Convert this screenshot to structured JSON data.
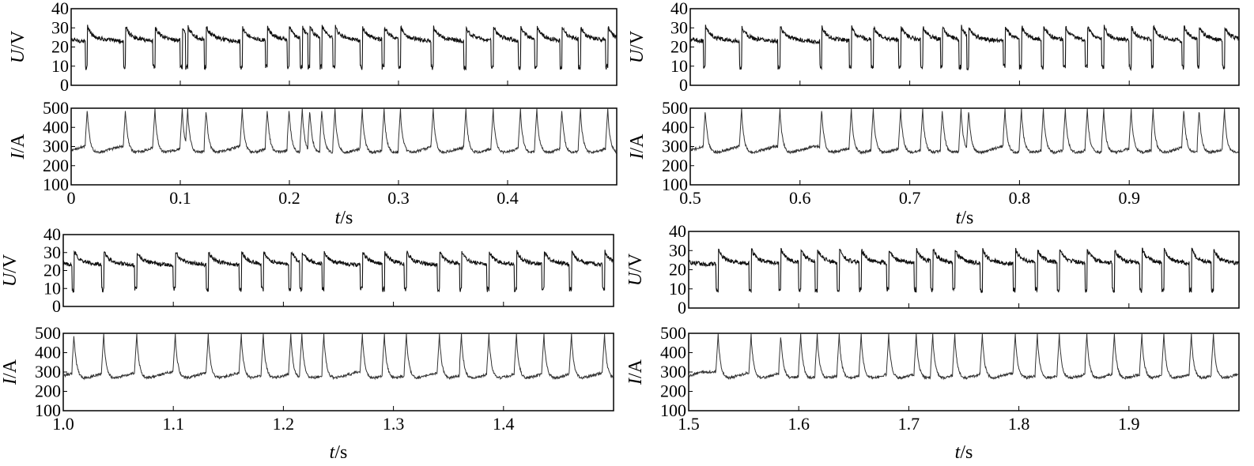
{
  "chart_data": [
    {
      "type": "line",
      "time_range": [
        0,
        0.5
      ],
      "xticks": [
        0,
        0.1,
        0.2,
        0.3,
        0.4
      ],
      "xtick_labels": [
        "0",
        "0.1",
        "0.2",
        "0.3",
        "0.4"
      ],
      "xlabel_var": "t",
      "xlabel_unit": "/s",
      "voltage": {
        "ylabel_var": "U",
        "ylabel_unit": "/V",
        "ylim": [
          0,
          40
        ],
        "yticks": [
          "40",
          "30",
          "20",
          "10",
          "0"
        ],
        "series": [
          {
            "baseline": 25,
            "drop_to": 8,
            "short_circuit_times": [
              0.013,
              0.048,
              0.075,
              0.1,
              0.105,
              0.122,
              0.155,
              0.178,
              0.198,
              0.21,
              0.217,
              0.228,
              0.24,
              0.265,
              0.285,
              0.3,
              0.33,
              0.36,
              0.385,
              0.41,
              0.425,
              0.448,
              0.465,
              0.49
            ]
          }
        ]
      },
      "current": {
        "ylabel_var": "I",
        "ylabel_unit": "/A",
        "ylim": [
          100,
          500
        ],
        "yticks": [
          "500",
          "400",
          "300",
          "200",
          "100"
        ],
        "series": [
          {
            "baseline": 280,
            "peak_to": 500,
            "short_circuit_times": [
              0.013,
              0.048,
              0.075,
              0.1,
              0.105,
              0.122,
              0.155,
              0.178,
              0.198,
              0.21,
              0.217,
              0.228,
              0.24,
              0.265,
              0.285,
              0.3,
              0.33,
              0.36,
              0.385,
              0.41,
              0.425,
              0.448,
              0.465,
              0.49
            ]
          }
        ]
      }
    },
    {
      "type": "line",
      "time_range": [
        0.5,
        1.0
      ],
      "xticks": [
        0.5,
        0.6,
        0.7,
        0.8,
        0.9
      ],
      "xtick_labels": [
        "0.5",
        "0.6",
        "0.7",
        "0.8",
        "0.9"
      ],
      "xlabel_var": "t",
      "xlabel_unit": "/s",
      "voltage": {
        "ylabel_var": "U",
        "ylabel_unit": "/V",
        "ylim": [
          0,
          40
        ],
        "yticks": [
          "40",
          "30",
          "20",
          "10",
          "0"
        ],
        "series": [
          {
            "baseline": 25,
            "drop_to": 8,
            "short_circuit_times": [
              0.512,
              0.545,
              0.58,
              0.618,
              0.645,
              0.665,
              0.69,
              0.71,
              0.728,
              0.745,
              0.752,
              0.785,
              0.8,
              0.82,
              0.84,
              0.86,
              0.875,
              0.9,
              0.92,
              0.948,
              0.962,
              0.985
            ]
          }
        ]
      },
      "current": {
        "ylabel_var": "I",
        "ylabel_unit": "/A",
        "ylim": [
          100,
          500
        ],
        "yticks": [
          "500",
          "400",
          "300",
          "200",
          "100"
        ],
        "series": [
          {
            "baseline": 280,
            "peak_to": 500,
            "short_circuit_times": [
              0.512,
              0.545,
              0.58,
              0.618,
              0.645,
              0.665,
              0.69,
              0.71,
              0.728,
              0.745,
              0.752,
              0.785,
              0.8,
              0.82,
              0.84,
              0.86,
              0.875,
              0.9,
              0.92,
              0.948,
              0.962,
              0.985
            ]
          }
        ]
      }
    },
    {
      "type": "line",
      "time_range": [
        1.0,
        1.5
      ],
      "xticks": [
        1.0,
        1.1,
        1.2,
        1.3,
        1.4
      ],
      "xtick_labels": [
        "1.0",
        "1.1",
        "1.2",
        "1.3",
        "1.4"
      ],
      "xlabel_var": "t",
      "xlabel_unit": "/s",
      "voltage": {
        "ylabel_var": "U",
        "ylabel_unit": "/V",
        "ylim": [
          0,
          40
        ],
        "yticks": [
          "40",
          "30",
          "20",
          "10",
          "0"
        ],
        "series": [
          {
            "baseline": 25,
            "drop_to": 8,
            "short_circuit_times": [
              1.008,
              1.035,
              1.065,
              1.1,
              1.13,
              1.16,
              1.18,
              1.205,
              1.215,
              1.235,
              1.27,
              1.29,
              1.31,
              1.34,
              1.36,
              1.385,
              1.41,
              1.435,
              1.46,
              1.49
            ]
          }
        ]
      },
      "current": {
        "ylabel_var": "I",
        "ylabel_unit": "/A",
        "ylim": [
          100,
          500
        ],
        "yticks": [
          "500",
          "400",
          "300",
          "200",
          "100"
        ],
        "series": [
          {
            "baseline": 280,
            "peak_to": 500,
            "short_circuit_times": [
              1.008,
              1.035,
              1.065,
              1.1,
              1.13,
              1.16,
              1.18,
              1.205,
              1.215,
              1.235,
              1.27,
              1.29,
              1.31,
              1.34,
              1.36,
              1.385,
              1.41,
              1.435,
              1.46,
              1.49
            ]
          }
        ]
      }
    },
    {
      "type": "line",
      "time_range": [
        1.5,
        2.0
      ],
      "xticks": [
        1.5,
        1.6,
        1.7,
        1.8,
        1.9
      ],
      "xtick_labels": [
        "1.5",
        "1.6",
        "1.7",
        "1.8",
        "1.9"
      ],
      "xlabel_var": "t",
      "xlabel_unit": "/s",
      "voltage": {
        "ylabel_var": "U",
        "ylabel_unit": "/V",
        "ylim": [
          0,
          40
        ],
        "yticks": [
          "40",
          "30",
          "20",
          "10",
          "0"
        ],
        "series": [
          {
            "baseline": 25,
            "drop_to": 8,
            "short_circuit_times": [
              1.525,
              1.555,
              1.582,
              1.6,
              1.615,
              1.635,
              1.655,
              1.68,
              1.705,
              1.72,
              1.74,
              1.765,
              1.795,
              1.815,
              1.835,
              1.86,
              1.885,
              1.91,
              1.93,
              1.955,
              1.975
            ]
          }
        ]
      },
      "current": {
        "ylabel_var": "I",
        "ylabel_unit": "/A",
        "ylim": [
          100,
          500
        ],
        "yticks": [
          "500",
          "400",
          "300",
          "200",
          "100"
        ],
        "series": [
          {
            "baseline": 280,
            "peak_to": 500,
            "short_circuit_times": [
              1.525,
              1.555,
              1.582,
              1.6,
              1.615,
              1.635,
              1.655,
              1.68,
              1.705,
              1.72,
              1.74,
              1.765,
              1.795,
              1.815,
              1.835,
              1.86,
              1.885,
              1.91,
              1.93,
              1.955,
              1.975
            ]
          }
        ]
      }
    }
  ]
}
